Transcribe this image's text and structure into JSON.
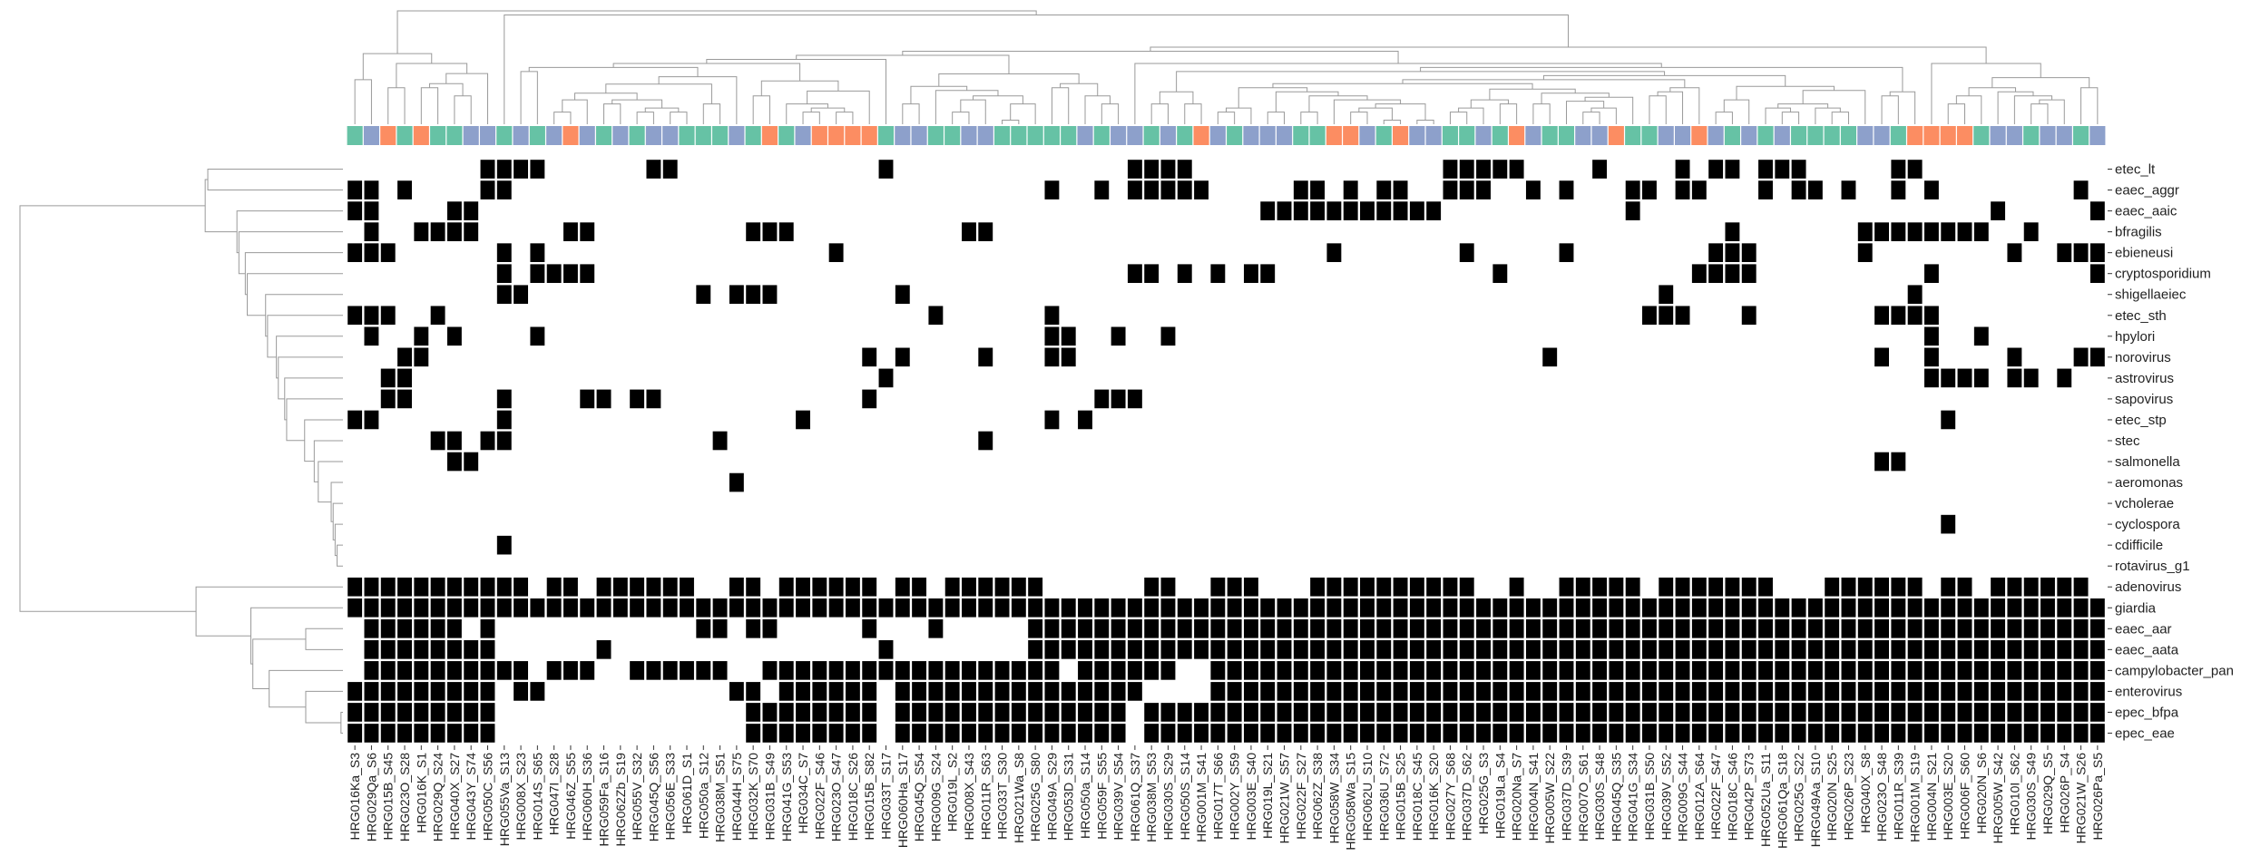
{
  "chart_data": {
    "type": "heatmap",
    "title": "",
    "xlabel": "",
    "ylabel": "",
    "values_meaning": "binary presence (1 = black cell) of pathogen per sample",
    "colors": {
      "present": "#000000",
      "absent": "#ffffff",
      "dendrogram": "#9a9a9a",
      "group_green": "#66c2a5",
      "group_orange": "#fc8d62",
      "group_purple": "#8da0cb"
    },
    "rows": [
      "etec_lt",
      "eaec_aggr",
      "eaec_aaic",
      "bfragilis",
      "ebieneusi",
      "cryptosporidium",
      "shigellaeiec",
      "etec_sth",
      "hpylori",
      "norovirus",
      "astrovirus",
      "sapovirus",
      "etec_stp",
      "stec",
      "salmonella",
      "aeromonas",
      "vcholerae",
      "cyclospora",
      "cdifficile",
      "rotavirus_g1",
      "adenovirus",
      "giardia",
      "eaec_aar",
      "eaec_aata",
      "campylobacter_pan",
      "enterovirus",
      "epec_bfpa",
      "epec_eae"
    ],
    "columns": [
      "HRG016Ka_S3",
      "HRG029Qa_S6",
      "HRG015B_S45",
      "HRG023O_S28",
      "HRG016K_S1",
      "HRG029Q_S24",
      "HRG040X_S27",
      "HRG043Y_S74",
      "HRG050C_S56",
      "HRG055Va_S13",
      "HRG008X_S23",
      "HRG014S_S65",
      "HRG047I_S28",
      "HRG046Z_S55",
      "HRG060H_S36",
      "HRG059Fa_S16",
      "HRG062Zb_S19",
      "HRG055V_S32",
      "HRG045Q_S56",
      "HRG056E_S33",
      "HRG061D_S1",
      "HRG050a_S12",
      "HRG038M_S51",
      "HRG044H_S75",
      "HRG032K_S70",
      "HRG031B_S49",
      "HRG041G_S53",
      "HRG034C_S7",
      "HRG022F_S46",
      "HRG023O_S47",
      "HRG018C_S26",
      "HRG015B_S82",
      "HRG033T_S17",
      "HRG060Ha_S17",
      "HRG045Q_S54",
      "HRG009G_S24",
      "HRG019L_S2",
      "HRG008X_S43",
      "HRG011R_S63",
      "HRG033T_S30",
      "HRG021Wa_S8",
      "HRG025G_S80",
      "HRG049A_S29",
      "HRG053D_S31",
      "HRG050a_S14",
      "HRG059F_S55",
      "HRG039V_S54",
      "HRG061Q_S37",
      "HRG038M_S53",
      "HRG030S_S29",
      "HRG050S_S14",
      "HRG001M_S41",
      "HRG017T_S66",
      "HRG002Y_S59",
      "HRG003E_S40",
      "HRG019L_S21",
      "HRG021W_S57",
      "HRG022F_S27",
      "HRG062Z_S38",
      "HRG058W_S34",
      "HRG058Wa_S15",
      "HRG062U_S10",
      "HRG036U_S72",
      "HRG015B_S25",
      "HRG018C_S45",
      "HRG016K_S20",
      "HRG027Y_S68",
      "HRG037D_S62",
      "HRG025G_S3",
      "HRG019La_S4",
      "HRG020Na_S7",
      "HRG004N_S41",
      "HRG005W_S22",
      "HRG037D_S39",
      "HRG007O_S61",
      "HRG030S_S48",
      "HRG045Q_S35",
      "HRG041G_S34",
      "HRG031B_S50",
      "HRG039V_S52",
      "HRG009G_S44",
      "HRG012A_S64",
      "HRG022F_S47",
      "HRG018C_S46",
      "HRG042P_S73",
      "HRG052Ua_S11",
      "HRG061Qa_S18",
      "HRG025G_S22",
      "HRG049Aa_S10",
      "HRG020N_S25",
      "HRG026P_S23",
      "HRG040X_S8",
      "HRG023O_S48",
      "HRG011R_S39",
      "HRG001M_S19",
      "HRG004N_S21",
      "HRG003E_S20",
      "HRG006F_S60",
      "HRG020N_S6",
      "HRG005W_S42",
      "HRG010I_S62",
      "HRG030S_S49",
      "HRG029Q_S5",
      "HRG026P_S4",
      "HRG021W_S26",
      "HRG026Pa_S5"
    ],
    "column_groups": "GAOGOGGAAGAGAOAGAGAAGGGAGOGAOOOOGAAGGAAGGGGGAGAAGAGOAGAAAGGOOAGOAAGGAGOAGGAAOGGAAOAGAGAGGGGAAGOOOOGAAGAAGA",
    "matrix_packed": [
      "AAAAAAAAPPPPAAAAAAPPAAAAAAAAAAPAAAAAAAAAPPPPPPAAAAAAAAAAAAAAPAAAAAAAAAPPAAAAAAAAAAAAAPPPPPAAAAAAAAAAAAAAAAAAAAAAPAAPPAAAAPPAAAAAAAAPAAAAAPPAAAAAAAAAAAAAAAAAAAAAAAAAAAAAAAPAAAAA",
      "PPAPAAAPPAAAAAAAAAAAAAAAAAAAAAAAAAAAAAAAAAAAAPAAPAAAAPAPPPPPPPPAAAAPPAAAAPPPAAAPPAAAAAAAAAAAPAAPAAAAAAAAAPPAAAAAAAAAAAAAAAAAAAAAAAAAAAAAAAAAAAAAAPPAPPAAAPAAAAAAAPAAAPAAAAPPAAAAAPPAPAPPAAAAAAAAPAAAPAAAPAAAAAAAAAAAAAAAAAAAAAAAAPAAAAAAAAAAAAAAAAAAAPPPAAAAPPAAAAAAAAAAAAAAAAAAAAA",
      "PPPPPAAAAAAAAAAAAAAAAAAAAAAAAAAAAAAAAAAAAAAAAAAAAAAAAAAAAAAAAAAAAAAAAAAAAAAAAAAAAAAAAAAAAAAAAAAAAAAAAAAAAAAAAAAAAAAAAAAAAAAAAAAAAAAAAAAAAAAAAAAAAAAAAAAAAAAAAAAAAAAAAAAAAAAAAAAAAAAAAAAAAAAAAAAAAAAAAAAAAAAAAAAAAAAAAAAAAAAAAAAAAAAAAAAAAAAAAAAAAAAAAAAAAAAAAAAAAAAAAAAAAAAAAAAAAAAAAAAAAAAAAAAAAAAAAA"
    ],
    "matrix": [
      "0000000011110000001100000000000010000000000000011110000000000000001111100001000010110111000001100000000000000",
      "1101000011000000000000000000000000000000001001011111000001101011001110010100011011000101101001010000000010110",
      "1100001100000000000000000000000000000000000000000000000111111111110000000000010000000000000000000001000001011",
      "0100111100000110000000001110000000000110000000000000000000000000000000000000000000010000000111111110010000011",
      "1110000001010000000000000000010000000000000000000000000000010000000100000100000000111000000100000000100111001",
      "0000000001011110000000000000000000000000000000011010101100000000000001000000000001111000000000010000000001011",
      "0000000001100000000001011100000001000000000000000000000000000000000000000000000100000000000000100000000000111",
      "1110010000000000000000000000000000010000001000000000000000000000000000000000001110001000000011110000000000011",
      "0100101000010000000000000000000000000000001100100100000000000000000000000000000000000000000000010010000000101",
      "0001100000000000000000000000000101000010001100000000000000000000000000001000000000000000000010010000100011000",
      "0011000000000000000000000000000010000000000000000000000000000000000000000000000000000000000000011110110100100",
      "0011000001000011011000000000000100000000000001110000000000000000000000000000000000000000000000000000000000010",
      "1100000001000000000000000001000000000000001010000000000000000000000000000000000000000000000000001000000000010",
      "0000011011000000000000100000000000000010000000000000000000000000000000000000000000000000000000000000000000000",
      "0000001100000000000000000000000000000000000000000000000000000000000000000000000000000000000011000000000000100",
      "0000000000000000000000010000000000000000000000000000000000000000000000000000000000000000000000000000000000000",
      "0000000000000000000000000000000000000000000000000000000000000000000000000000000000000000000000000000000000001",
      "0000000000000000000000000000000000000000000000000000000000000000000000000000000000000000000000001000000000000",
      "0000000001000000000000000000000000000000000000000000000000000000000000000000000000000000000000000000000000000",
      "0000000000000000000000000000000000000000000000000000000000000000000000000000000000000000000000000000000000000",
      "1111111111101101111110011011111101101111110000001100111000111111111100100111110111111100011111101101111110111",
      "1111111111111111111111111111111111111111111111111111111111111111111111111111111111111111111111111111111111111",
      "0111111010000000000001101100000100010000011111111111111111111111111111111111111111111111111111111111111111111",
      "0111111110000001000000000000000010000000011111111111111111111111111111111111111111111111111111111111111111111",
      "0111111111101110011111100111111111111111111011111100111111111111111111111111111111111111111111111111111111111",
      "1111111110110000000000011011111101111111111111110000111111111111111111111111111111111111111111111111111111111",
      "1111111110000000000000001111111101111111111111101111111111111111111111111111111111111111111111111111111111111",
      "1111111110000000000000001111111101111111111111101111111111111111111111111111111111111111111111111111111111111"
    ]
  }
}
